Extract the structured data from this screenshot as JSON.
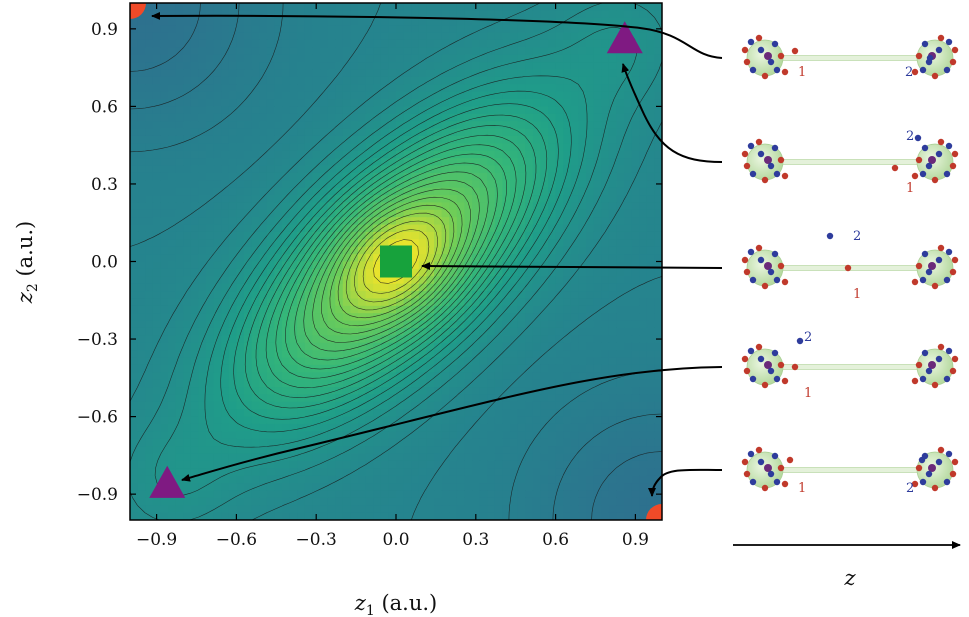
{
  "chart_data": {
    "type": "heatmap",
    "title": "",
    "xlabel": {
      "var": "z",
      "sub": "1",
      "unit": " (a.u.)"
    },
    "ylabel": {
      "var": "z",
      "sub": "2",
      "unit": " (a.u.)"
    },
    "xlim": [
      -1.0,
      1.0
    ],
    "ylim": [
      -1.0,
      1.0
    ],
    "xticks": [
      -0.9,
      -0.6,
      -0.3,
      0.0,
      0.3,
      0.6,
      0.9
    ],
    "yticks": [
      -0.9,
      -0.6,
      -0.3,
      0.0,
      0.3,
      0.6,
      0.9
    ],
    "xticklabels": [
      "−0.9",
      "−0.6",
      "−0.3",
      "0.0",
      "0.3",
      "0.6",
      "0.9"
    ],
    "yticklabels": [
      "−0.9",
      "−0.6",
      "−0.3",
      "0.0",
      "0.3",
      "0.6",
      "0.9"
    ],
    "colormap": "viridis",
    "contour_lines": true,
    "markers": [
      {
        "kind": "circle",
        "x": -0.95,
        "y": 0.95,
        "color": "#f04a28"
      },
      {
        "kind": "circle",
        "x": 0.95,
        "y": -0.95,
        "color": "#f04a28"
      },
      {
        "kind": "triangle",
        "x": 0.86,
        "y": 0.86,
        "color": "#7f1a82"
      },
      {
        "kind": "triangle",
        "x": -0.86,
        "y": -0.86,
        "color": "#7f1a82"
      },
      {
        "kind": "square",
        "x": 0.0,
        "y": 0.0,
        "color": "#17a23c"
      }
    ],
    "side_axis_label": "z",
    "configurations": [
      {
        "label_1": "1",
        "label_2": "2"
      },
      {
        "label_1": "1",
        "label_2": "2"
      },
      {
        "label_1": "1",
        "label_2": "2"
      },
      {
        "label_1": "1",
        "label_2": "2"
      },
      {
        "label_1": "1",
        "label_2": "2"
      }
    ],
    "colors": {
      "red_particle": "#c0392b",
      "blue_particle": "#2e3c9c",
      "cluster": "#c8e6b4",
      "purple_core": "#6b2a7a"
    }
  }
}
